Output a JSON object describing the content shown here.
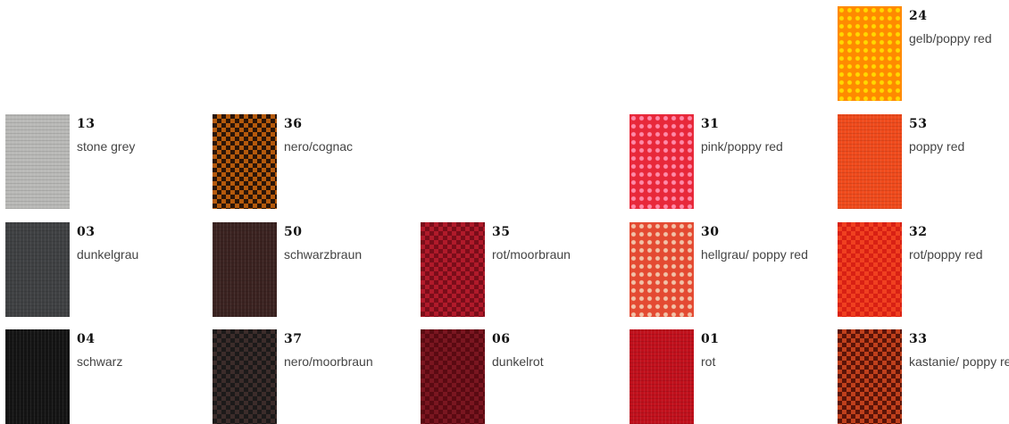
{
  "swatches": [
    {
      "number": "24",
      "name": "gelb/poppy red",
      "base": "#ff8a00",
      "dot": "#ffd800",
      "pattern": "dots"
    },
    {
      "number": "13",
      "name": "stone grey",
      "base": "#b9b9b7",
      "dot": "#c8c8c6",
      "pattern": "weave"
    },
    {
      "number": "36",
      "name": "nero/cognac",
      "base": "#2a1508",
      "dot": "#b55a0c",
      "pattern": "check"
    },
    {
      "number": "31",
      "name": "pink/poppy red",
      "base": "#e8283a",
      "dot": "#ff8aa8",
      "pattern": "dots"
    },
    {
      "number": "53",
      "name": "poppy red",
      "base": "#ef4a1c",
      "dot": "#f2602a",
      "pattern": "weave"
    },
    {
      "number": "03",
      "name": "dunkelgrau",
      "base": "#3e4042",
      "dot": "#4a4c4e",
      "pattern": "weave"
    },
    {
      "number": "50",
      "name": "schwarzbraun",
      "base": "#3a2220",
      "dot": "#4a2c28",
      "pattern": "weave"
    },
    {
      "number": "35",
      "name": "rot/moorbraun",
      "base": "#7a0d1a",
      "dot": "#b01a2a",
      "pattern": "check"
    },
    {
      "number": "30",
      "name": "hellgrau/ poppy red",
      "base": "#e44a32",
      "dot": "#f2c2a8",
      "pattern": "dots"
    },
    {
      "number": "32",
      "name": "rot/poppy red",
      "base": "#d82014",
      "dot": "#f04020",
      "pattern": "check"
    },
    {
      "number": "04",
      "name": "schwarz",
      "base": "#141414",
      "dot": "#202020",
      "pattern": "weave"
    },
    {
      "number": "37",
      "name": "nero/moorbraun",
      "base": "#1c1a1a",
      "dot": "#3c2c2a",
      "pattern": "check"
    },
    {
      "number": "06",
      "name": "dunkelrot",
      "base": "#5a0a12",
      "dot": "#7a1620",
      "pattern": "check"
    },
    {
      "number": "01",
      "name": "rot",
      "base": "#c0101c",
      "dot": "#d01824",
      "pattern": "weave"
    },
    {
      "number": "33",
      "name": "kastanie/ poppy red",
      "base": "#5a1408",
      "dot": "#c0401c",
      "pattern": "check"
    }
  ]
}
